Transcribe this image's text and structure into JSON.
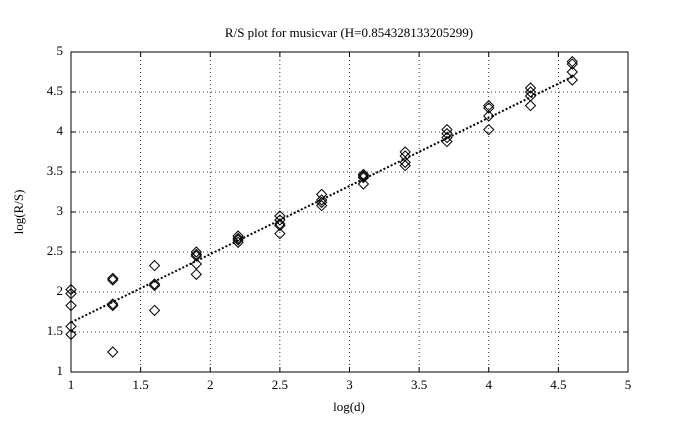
{
  "chart_data": {
    "type": "scatter",
    "title": "R/S plot for musicvar (H=0.854328133205299)",
    "x_label": "log(d)",
    "y_label": "log(R/S)",
    "xlim": [
      1,
      5
    ],
    "ylim": [
      1,
      5
    ],
    "xticks": [
      1,
      1.5,
      2,
      2.5,
      3,
      3.5,
      4,
      4.5,
      5
    ],
    "yticks": [
      1,
      1.5,
      2,
      2.5,
      3,
      3.5,
      4,
      4.5,
      5
    ],
    "grid": true,
    "series": [
      {
        "color": "#000000",
        "marker": "diamond",
        "x": [
          1.0,
          1.0,
          1.0,
          1.0,
          1.0,
          1.3,
          1.3,
          1.3,
          1.3,
          1.3,
          1.6,
          1.6,
          1.6,
          1.6,
          1.9,
          1.9,
          1.9,
          1.9,
          1.9,
          2.2,
          2.2,
          2.2,
          2.2,
          2.5,
          2.5,
          2.5,
          2.5,
          2.5,
          2.8,
          2.8,
          2.8,
          2.8,
          3.1,
          3.1,
          3.1,
          3.1,
          3.4,
          3.4,
          3.4,
          3.4,
          3.7,
          3.7,
          3.7,
          3.7,
          4.0,
          4.0,
          4.0,
          4.0,
          4.3,
          4.3,
          4.3,
          4.3,
          4.6,
          4.6,
          4.6,
          4.6
        ],
        "values": [
          2.03,
          1.98,
          1.83,
          1.57,
          1.47,
          2.17,
          2.15,
          1.85,
          1.83,
          1.25,
          2.33,
          2.1,
          2.08,
          1.77,
          2.5,
          2.47,
          2.45,
          2.35,
          2.22,
          2.7,
          2.67,
          2.65,
          2.62,
          2.95,
          2.9,
          2.85,
          2.83,
          2.73,
          3.22,
          3.15,
          3.12,
          3.08,
          3.47,
          3.45,
          3.43,
          3.35,
          3.75,
          3.7,
          3.62,
          3.58,
          4.03,
          3.98,
          3.93,
          3.88,
          4.33,
          4.3,
          4.2,
          4.03,
          4.55,
          4.5,
          4.45,
          4.33,
          4.88,
          4.85,
          4.75,
          4.65
        ]
      },
      {
        "color": "#000000",
        "line": "dotted",
        "x": [
          1.0,
          4.6
        ],
        "values": [
          1.62,
          4.69
        ]
      }
    ]
  }
}
